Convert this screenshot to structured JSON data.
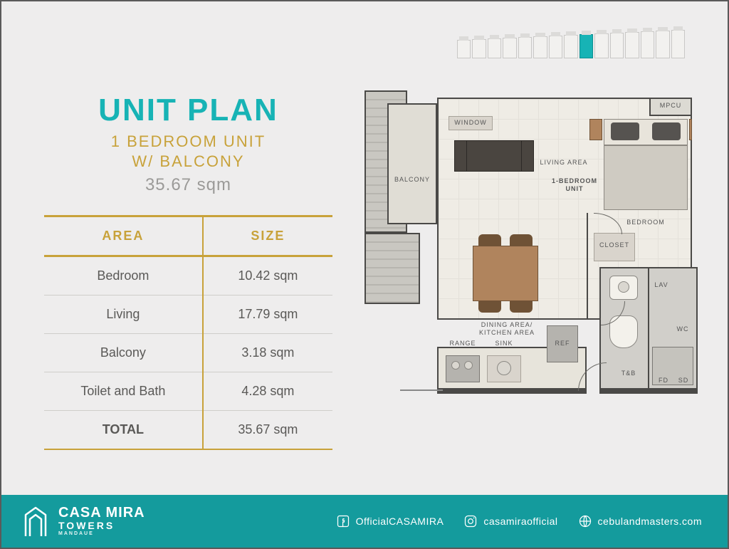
{
  "colors": {
    "accent": "#17b3b5",
    "gold": "#c8a23a",
    "text_grey": "#9b9a98",
    "footer_bg": "#149b9d",
    "table_border": "#c8a23a"
  },
  "heading": {
    "title": "UNIT PLAN",
    "subtitle1": "1 BEDROOM UNIT",
    "subtitle2": "W/ BALCONY",
    "total_size": "35.67 sqm"
  },
  "table": {
    "headers": {
      "area": "AREA",
      "size": "SIZE"
    },
    "rows": [
      {
        "area": "Bedroom",
        "size": "10.42 sqm"
      },
      {
        "area": "Living",
        "size": "17.79 sqm"
      },
      {
        "area": "Balcony",
        "size": "3.18 sqm"
      },
      {
        "area": "Toilet and Bath",
        "size": "4.28 sqm"
      }
    ],
    "total": {
      "area": "TOTAL",
      "size": "35.67 sqm"
    }
  },
  "plan_labels": {
    "balcony": "BALCONY",
    "living": "LIVING AREA",
    "unit": "1-BEDROOM\nUNIT",
    "bedroom": "BEDROOM",
    "dining": "DINING AREA/\nKITCHEN AREA",
    "range": "RANGE",
    "sink": "SINK",
    "ref": "REF",
    "closet": "CLOSET",
    "tb": "T&B",
    "wc": "WC",
    "lav": "LAV",
    "sd": "SD",
    "fd": "FD",
    "mpcu": "MPCU",
    "window": "WINDOW"
  },
  "floorkey": {
    "total_slots": 15,
    "highlight_index": 8
  },
  "footer": {
    "brand_line1": "CASA MIRA",
    "brand_line2": "TOWERS",
    "brand_line3": "MANDAUE",
    "socials": {
      "facebook": "OfficialCASAMIRA",
      "instagram": "casamiraofficial",
      "web": "cebulandmasters.com"
    }
  }
}
